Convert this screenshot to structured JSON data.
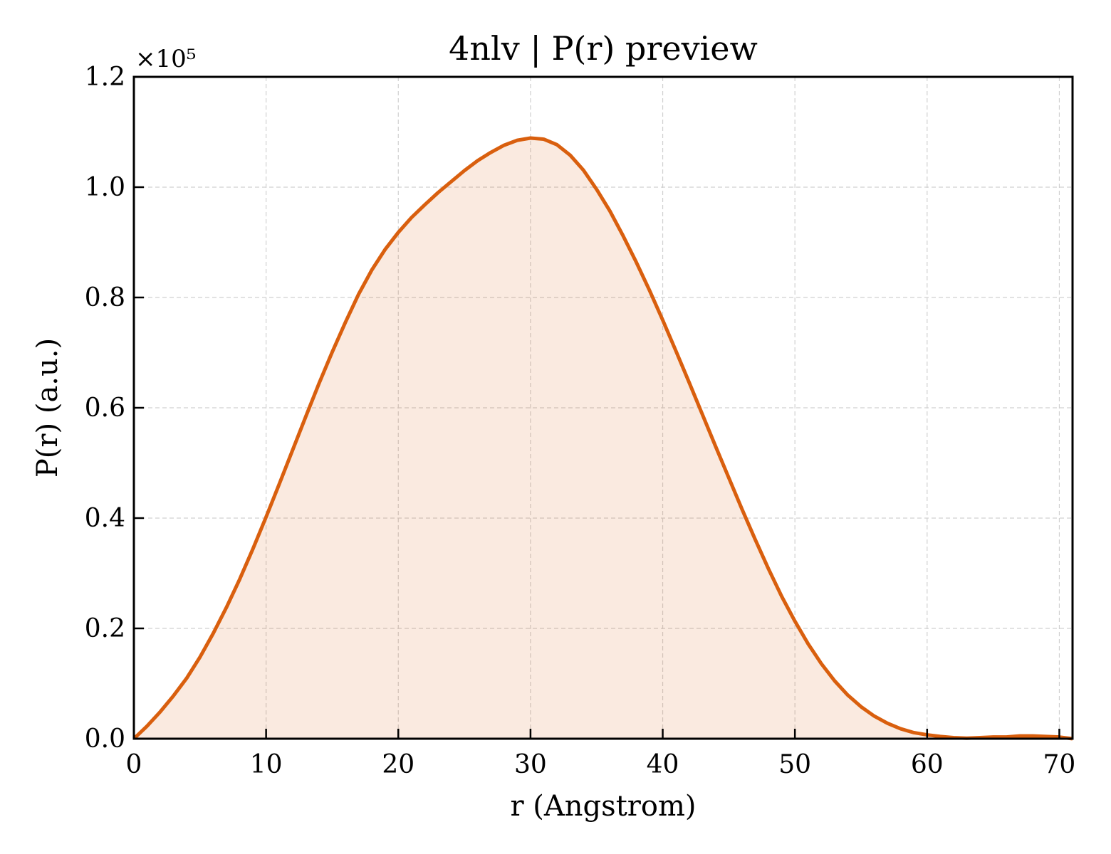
{
  "chart_data": {
    "type": "area",
    "title": "4nlv | P(r) preview",
    "xlabel": "r (Angstrom)",
    "ylabel": "P(r) (a.u.)",
    "y_scale_label": "×10⁵",
    "y_scale_factor": 100000,
    "xlim": [
      0,
      71
    ],
    "ylim": [
      0,
      120000
    ],
    "x_ticks": [
      0,
      10,
      20,
      30,
      40,
      50,
      60,
      70
    ],
    "x_tick_labels": [
      "0",
      "10",
      "20",
      "30",
      "40",
      "50",
      "60",
      "70"
    ],
    "y_ticks": [
      0,
      20000,
      40000,
      60000,
      80000,
      100000,
      120000
    ],
    "y_tick_labels": [
      "0.0",
      "0.2",
      "0.4",
      "0.6",
      "0.8",
      "1.0",
      "1.2"
    ],
    "grid": true,
    "series": [
      {
        "color": "#d95f0e",
        "fill_color": "#d95f0e",
        "fill_opacity": 0.13,
        "x": [
          0,
          1,
          2,
          3,
          4,
          5,
          6,
          7,
          8,
          9,
          10,
          11,
          12,
          13,
          14,
          15,
          16,
          17,
          18,
          19,
          20,
          21,
          22,
          23,
          24,
          25,
          26,
          27,
          28,
          29,
          30,
          31,
          32,
          33,
          34,
          35,
          36,
          37,
          38,
          39,
          40,
          41,
          42,
          43,
          44,
          45,
          46,
          47,
          48,
          49,
          50,
          51,
          52,
          53,
          54,
          55,
          56,
          57,
          58,
          59,
          60,
          61,
          62,
          63,
          64,
          65,
          66,
          67,
          68,
          69,
          70,
          71
        ],
        "y": [
          0,
          2300,
          4900,
          7800,
          11000,
          14800,
          19100,
          23800,
          28900,
          34400,
          40200,
          46200,
          52300,
          58400,
          64400,
          70100,
          75500,
          80600,
          85000,
          88700,
          91800,
          94500,
          96800,
          99000,
          101000,
          103000,
          104800,
          106300,
          107600,
          108500,
          108900,
          108700,
          107700,
          105800,
          103100,
          99600,
          95700,
          91200,
          86400,
          81300,
          75900,
          70300,
          64600,
          58800,
          53000,
          47300,
          41600,
          36100,
          30800,
          25800,
          21300,
          17200,
          13600,
          10500,
          7900,
          5800,
          4100,
          2800,
          1800,
          1100,
          700,
          400,
          200,
          100,
          200,
          300,
          300,
          500,
          500,
          400,
          300,
          0
        ]
      }
    ]
  }
}
